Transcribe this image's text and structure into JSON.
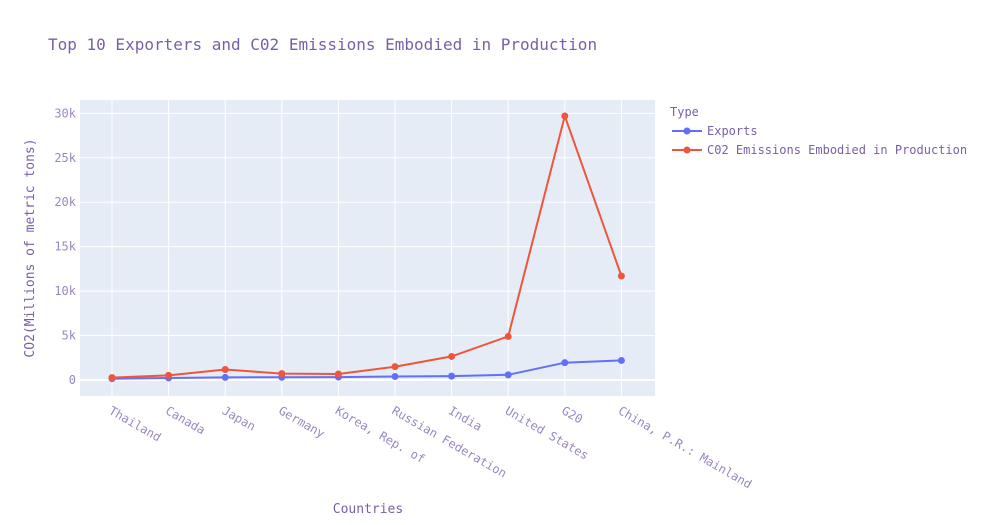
{
  "chart_data": {
    "type": "line",
    "title": "Top 10 Exporters and C02 Emissions Embodied in Production",
    "xlabel": "Countries",
    "ylabel": "CO2(Millions of metric tons)",
    "categories": [
      "Thailand",
      "Canada",
      "Japan",
      "Germany",
      "Korea, Rep. of",
      "Russian Federation",
      "India",
      "United States",
      "G20",
      "China, P.R.: Mainland"
    ],
    "ylim": [
      -1800,
      31500
    ],
    "yticks": [
      0,
      5000,
      10000,
      15000,
      20000,
      25000,
      30000
    ],
    "ytick_labels": [
      "0",
      "5k",
      "10k",
      "15k",
      "20k",
      "25k",
      "30k"
    ],
    "grid": true,
    "legend": {
      "title": "Type",
      "placement": "top-right, outside plot"
    },
    "series": [
      {
        "name": "Exports",
        "color": "#636efa",
        "values": [
          150,
          230,
          290,
          310,
          330,
          390,
          440,
          580,
          1950,
          2200
        ]
      },
      {
        "name": "C02 Emissions Embodied in Production",
        "color": "#ef553b",
        "values": [
          270,
          520,
          1180,
          720,
          670,
          1500,
          2650,
          4900,
          29700,
          11700
        ]
      }
    ],
    "plot_bg": "#e5ecf6",
    "grid_color": "#ffffff"
  }
}
